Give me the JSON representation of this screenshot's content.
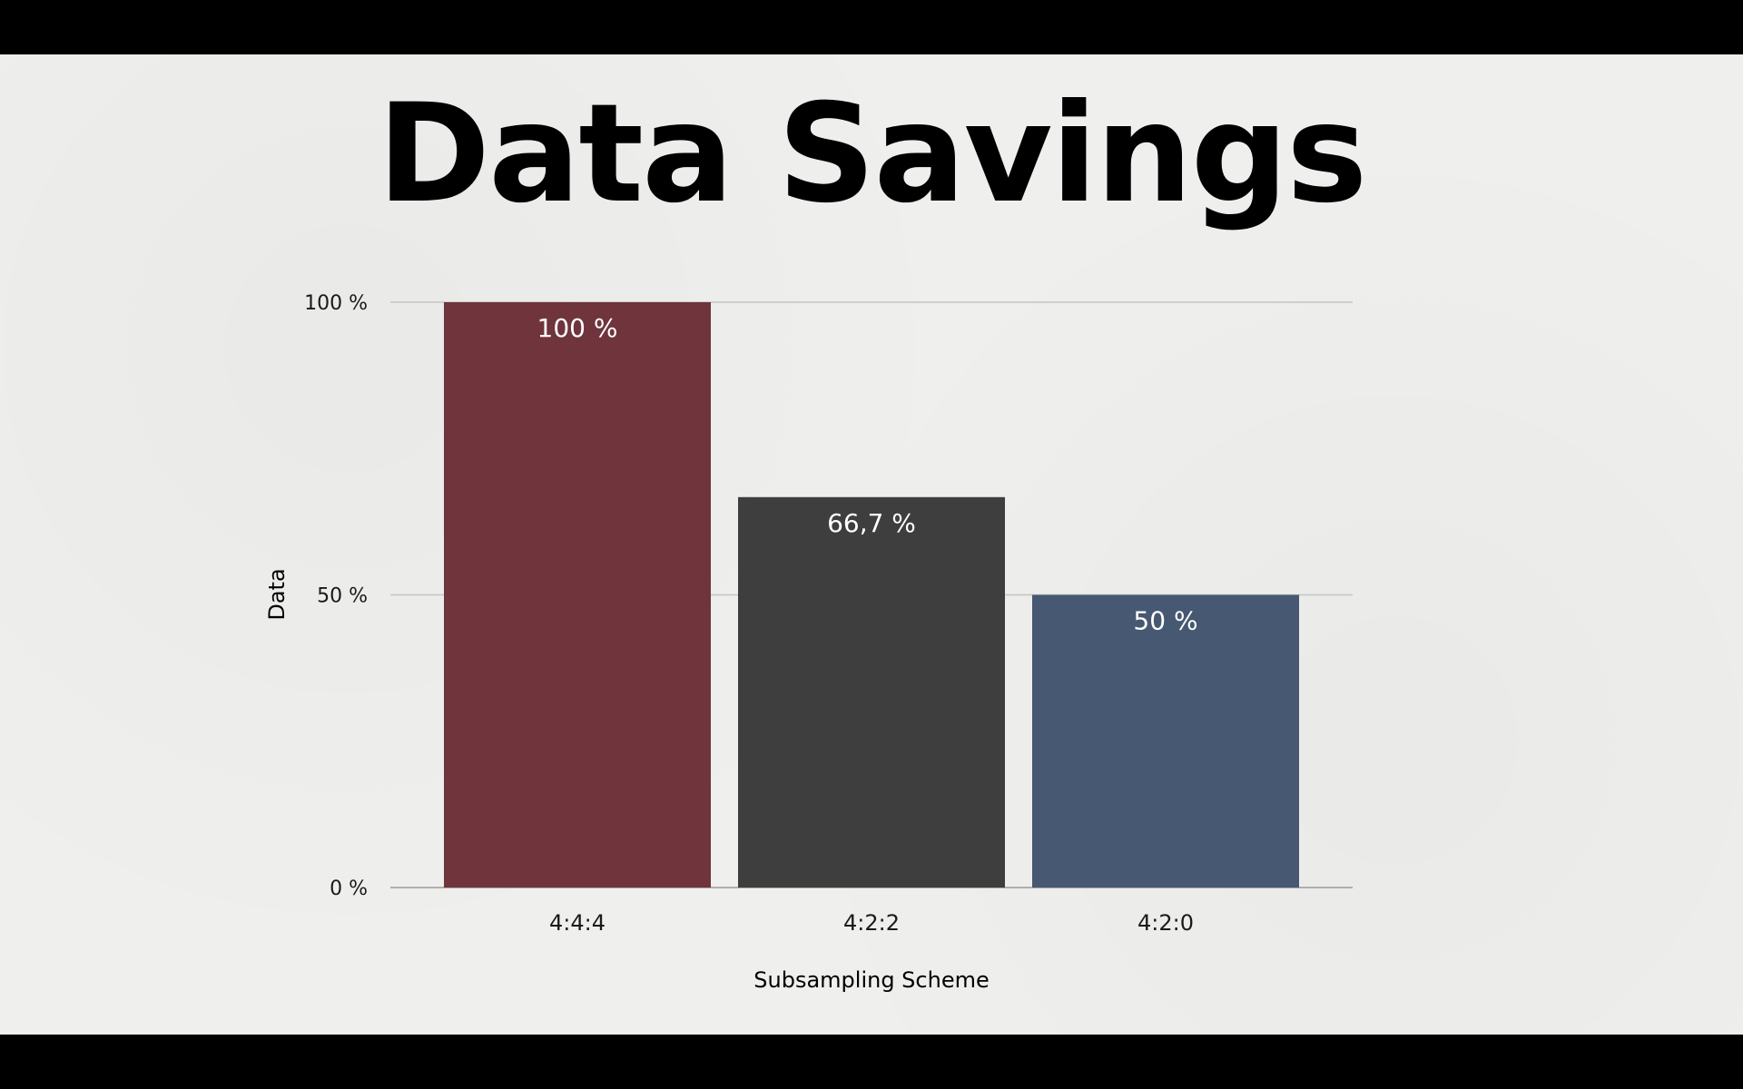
{
  "slide": {
    "title": "Data Savings"
  },
  "chart_data": {
    "type": "bar",
    "title": "",
    "xlabel": "Subsampling Scheme",
    "ylabel": "Data",
    "categories": [
      "4:4:4",
      "4:2:2",
      "4:2:0"
    ],
    "values": [
      100,
      66.7,
      50
    ],
    "data_labels": [
      "100 %",
      "66,7 %",
      "50 %"
    ],
    "colors": [
      "#70343d",
      "#3e3e3e",
      "#465872"
    ],
    "ylim": [
      0,
      100
    ],
    "yticks": [
      0,
      50,
      100
    ],
    "ytick_labels": [
      "0 %",
      "50 %",
      "100 %"
    ],
    "grid": true,
    "legend": "none"
  },
  "logo": {
    "icon": "brand-logo-icon"
  }
}
